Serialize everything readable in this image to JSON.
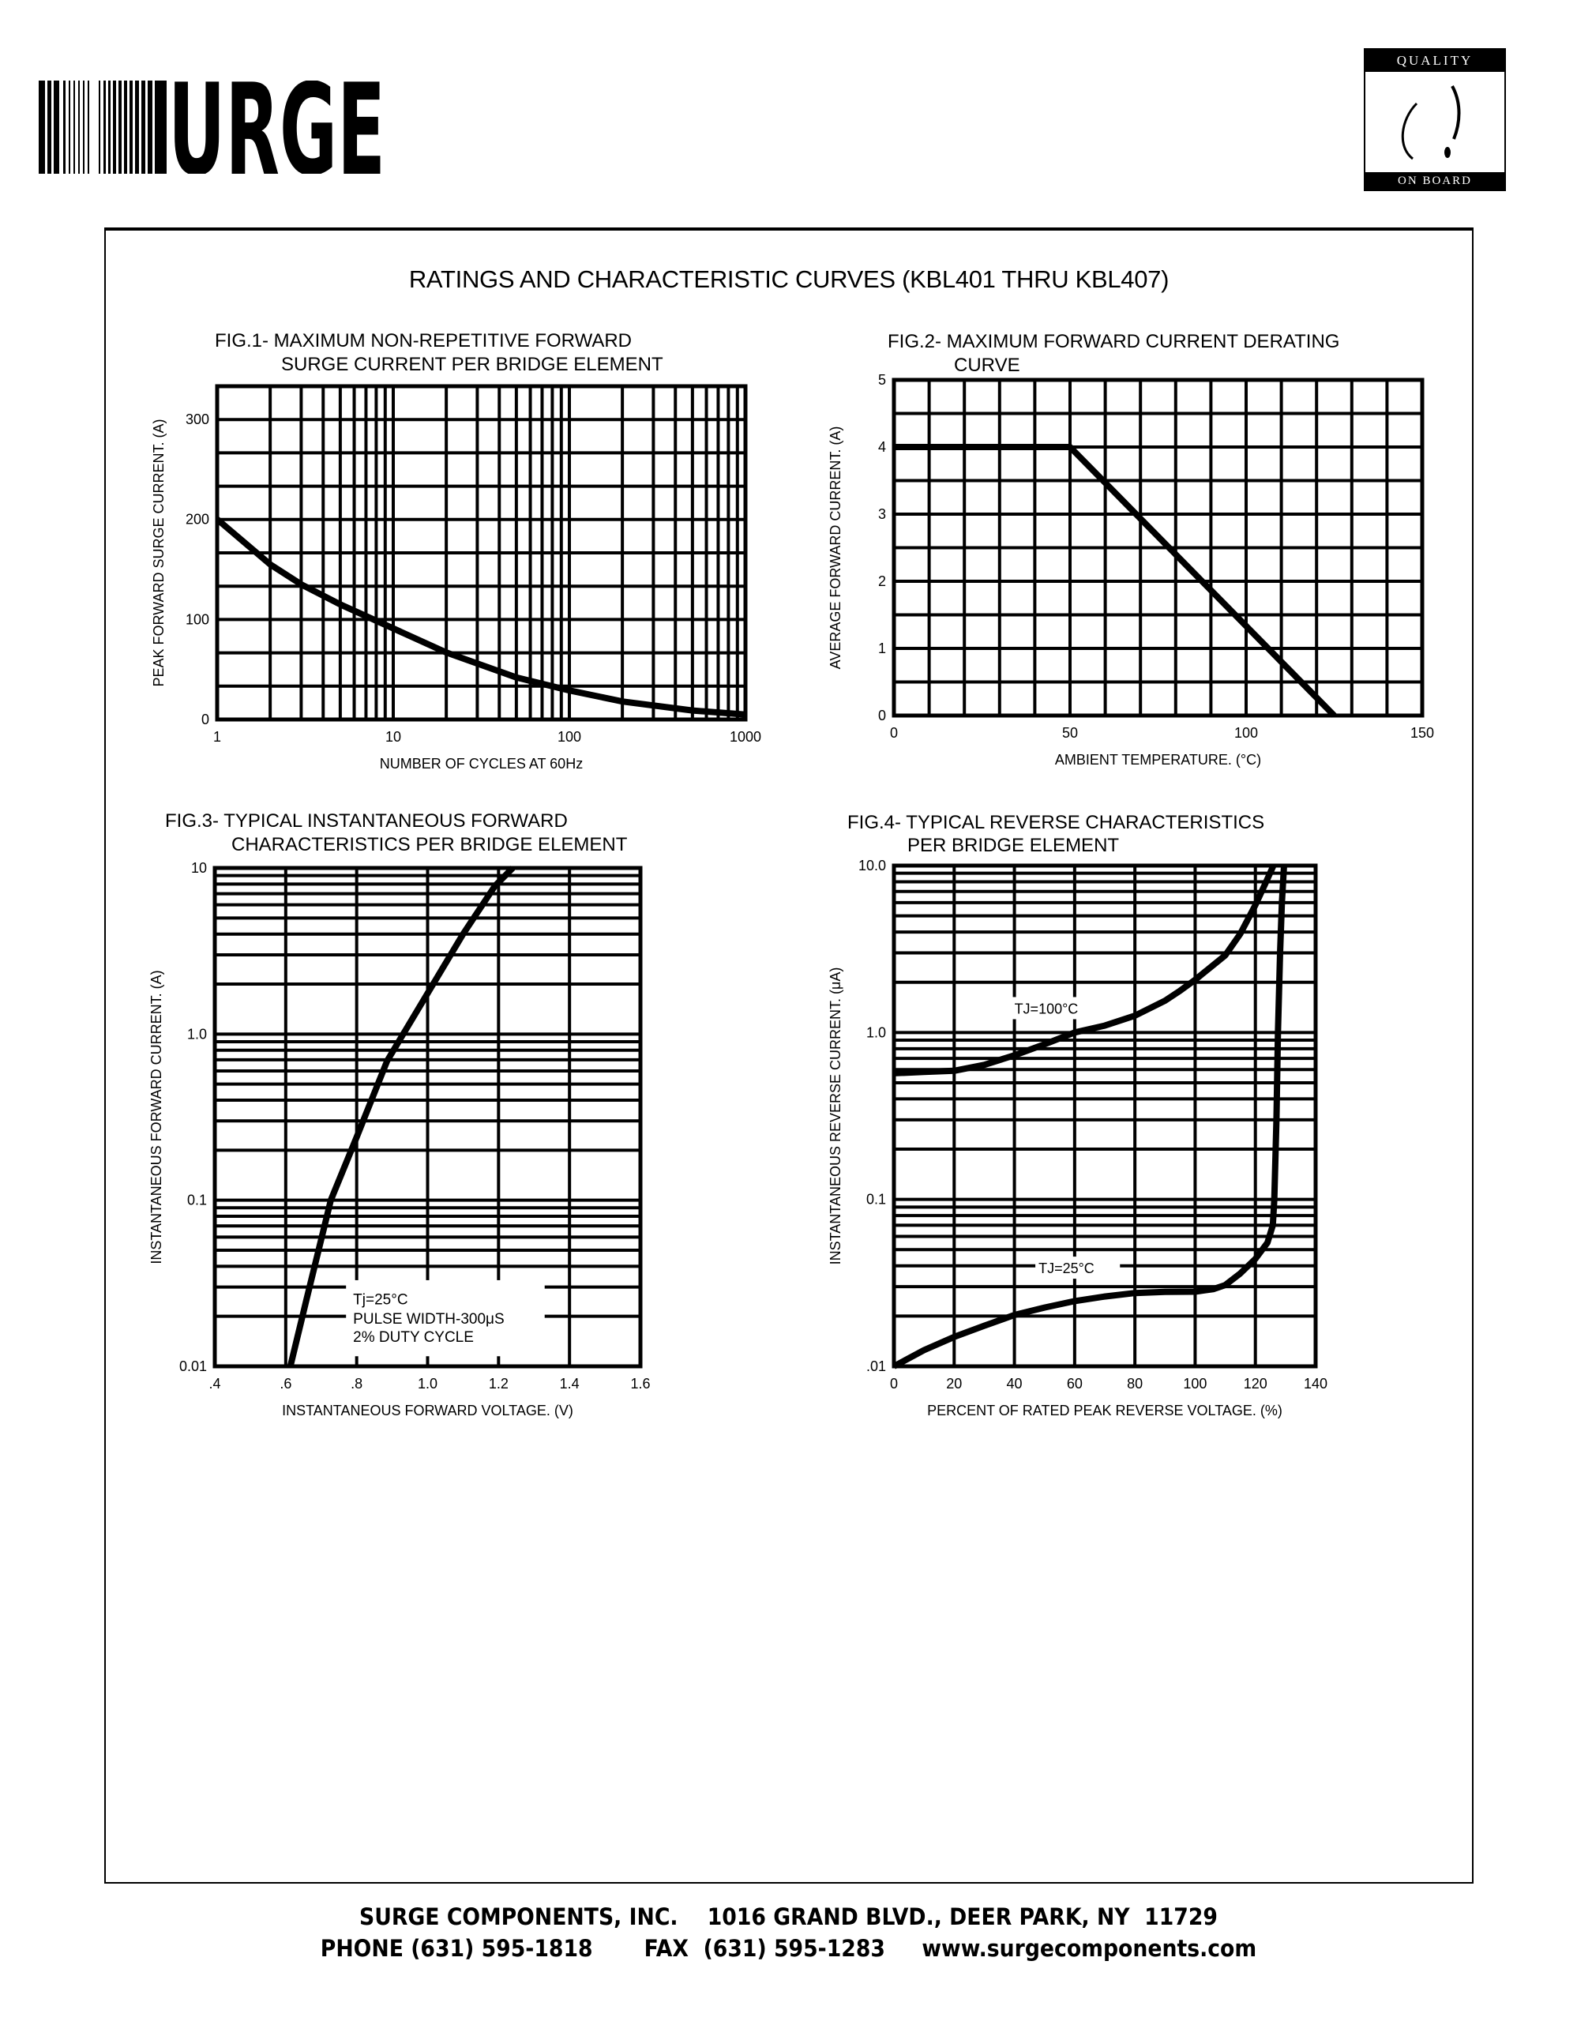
{
  "header": {
    "logo_text": "SURGE",
    "badge": {
      "top": "QUALITY",
      "bottom": "ON BOARD"
    }
  },
  "main": {
    "title": "RATINGS AND CHARACTERISTIC CURVES (KBL401 THRU KBL407)"
  },
  "chart_data": [
    {
      "type": "line",
      "title_lines": [
        "FIG.1- MAXIMUM NON-REPETITIVE FORWARD",
        "SURGE CURRENT PER BRIDGE ELEMENT"
      ],
      "xlabel": "NUMBER OF CYCLES AT 60Hz",
      "ylabel": "PEAK FORWARD SURGE CURRENT. (A)",
      "xscale": "log",
      "yscale": "linear",
      "xlim": [
        1,
        1000
      ],
      "ylim": [
        0,
        333
      ],
      "grid": true,
      "x_ticks": [
        {
          "v": 1,
          "label": "1"
        },
        {
          "v": 10,
          "label": "10"
        },
        {
          "v": 100,
          "label": "100"
        },
        {
          "v": 1000,
          "label": "1000"
        }
      ],
      "y_ticks": [
        {
          "v": 0,
          "label": "0"
        },
        {
          "v": 100,
          "label": "100"
        },
        {
          "v": 200,
          "label": "200"
        },
        {
          "v": 300,
          "label": "300"
        }
      ],
      "series": [
        {
          "points": [
            [
              1,
              200
            ],
            [
              2,
              155
            ],
            [
              3,
              135
            ],
            [
              5,
              115
            ],
            [
              10,
              91
            ],
            [
              20,
              67
            ],
            [
              50,
              42
            ],
            [
              100,
              29
            ],
            [
              200,
              18
            ],
            [
              500,
              9
            ],
            [
              1000,
              5
            ]
          ]
        }
      ]
    },
    {
      "type": "line",
      "title_lines": [
        "FIG.2- MAXIMUM FORWARD CURRENT DERATING",
        "CURVE"
      ],
      "xlabel": "AMBIENT TEMPERATURE. (°C)",
      "ylabel": "AVERAGE FORWARD CURRENT. (A)",
      "xscale": "linear",
      "yscale": "linear",
      "xlim": [
        0,
        150
      ],
      "ylim": [
        0,
        5
      ],
      "grid": true,
      "x_ticks": [
        {
          "v": 0,
          "label": "0"
        },
        {
          "v": 50,
          "label": "50"
        },
        {
          "v": 100,
          "label": "100"
        },
        {
          "v": 150,
          "label": "150"
        }
      ],
      "y_ticks": [
        {
          "v": 0,
          "label": "0"
        },
        {
          "v": 1,
          "label": "1"
        },
        {
          "v": 2,
          "label": "2"
        },
        {
          "v": 3,
          "label": "3"
        },
        {
          "v": 4,
          "label": "4"
        },
        {
          "v": 5,
          "label": "5"
        }
      ],
      "series": [
        {
          "points": [
            [
              0,
              4
            ],
            [
              50,
              4
            ],
            [
              125,
              0
            ]
          ]
        }
      ]
    },
    {
      "type": "line",
      "title_lines": [
        "FIG.3- TYPICAL INSTANTANEOUS FORWARD",
        "CHARACTERISTICS PER BRIDGE ELEMENT"
      ],
      "xlabel": "INSTANTANEOUS FORWARD VOLTAGE. (V)",
      "ylabel": "INSTANTANEOUS FORWARD CURRENT. (A)",
      "xscale": "linear",
      "yscale": "log",
      "xlim": [
        0.4,
        1.6
      ],
      "ylim": [
        0.01,
        10
      ],
      "grid": true,
      "x_ticks": [
        {
          "v": 0.4,
          "label": ".4"
        },
        {
          "v": 0.6,
          "label": ".6"
        },
        {
          "v": 0.8,
          "label": ".8"
        },
        {
          "v": 1.0,
          "label": "1.0"
        },
        {
          "v": 1.2,
          "label": "1.2"
        },
        {
          "v": 1.4,
          "label": "1.4"
        },
        {
          "v": 1.6,
          "label": "1.6"
        }
      ],
      "y_ticks": [
        {
          "v": 0.01,
          "label": "0.01"
        },
        {
          "v": 0.1,
          "label": "0.1"
        },
        {
          "v": 1,
          "label": "1.0"
        },
        {
          "v": 10,
          "label": "10"
        }
      ],
      "annotation_lines": [
        "Tj=25°C",
        "PULSE WIDTH-300μS",
        "2% DUTY CYCLE"
      ],
      "series": [
        {
          "points": [
            [
              0.613,
              0.01
            ],
            [
              0.658,
              0.025
            ],
            [
              0.727,
              0.1
            ],
            [
              0.8,
              0.24
            ],
            [
              0.886,
              0.69
            ],
            [
              1.0,
              1.76
            ],
            [
              1.1,
              4.0
            ],
            [
              1.19,
              7.8
            ],
            [
              1.24,
              10
            ]
          ]
        }
      ]
    },
    {
      "type": "line",
      "title_lines": [
        "FIG.4- TYPICAL REVERSE CHARACTERISTICS",
        "PER BRIDGE ELEMENT"
      ],
      "xlabel": "PERCENT OF RATED PEAK REVERSE VOLTAGE. (%)",
      "ylabel": "INSTANTANEOUS REVERSE CURRENT. (μA)",
      "xscale": "linear",
      "yscale": "log",
      "xlim": [
        0,
        140
      ],
      "ylim": [
        0.01,
        10
      ],
      "grid": true,
      "x_ticks": [
        {
          "v": 0,
          "label": "0"
        },
        {
          "v": 20,
          "label": "20"
        },
        {
          "v": 40,
          "label": "40"
        },
        {
          "v": 60,
          "label": "60"
        },
        {
          "v": 80,
          "label": "80"
        },
        {
          "v": 100,
          "label": "100"
        },
        {
          "v": 120,
          "label": "120"
        },
        {
          "v": 140,
          "label": "140"
        }
      ],
      "y_ticks": [
        {
          "v": 0.01,
          "label": ".01"
        },
        {
          "v": 0.1,
          "label": "0.1"
        },
        {
          "v": 1,
          "label": "1.0"
        },
        {
          "v": 10,
          "label": "10.0"
        }
      ],
      "series": [
        {
          "name": "TJ=100°C",
          "points": [
            [
              0,
              0.57
            ],
            [
              10,
              0.58
            ],
            [
              20,
              0.59
            ],
            [
              30,
              0.64
            ],
            [
              40,
              0.73
            ],
            [
              50,
              0.85
            ],
            [
              60,
              1.0
            ],
            [
              70,
              1.1
            ],
            [
              80,
              1.26
            ],
            [
              90,
              1.55
            ],
            [
              95,
              1.78
            ],
            [
              100,
              2.07
            ],
            [
              105,
              2.45
            ],
            [
              110,
              2.9
            ],
            [
              115,
              3.9
            ],
            [
              120,
              5.8
            ],
            [
              123,
              7.6
            ],
            [
              126,
              10
            ]
          ]
        },
        {
          "name": "TJ=25°C",
          "points": [
            [
              0,
              0.01
            ],
            [
              10,
              0.0125
            ],
            [
              20,
              0.015
            ],
            [
              30,
              0.0175
            ],
            [
              40,
              0.0203
            ],
            [
              50,
              0.0225
            ],
            [
              60,
              0.0246
            ],
            [
              70,
              0.0262
            ],
            [
              80,
              0.0275
            ],
            [
              90,
              0.0279
            ],
            [
              100,
              0.028
            ],
            [
              106,
              0.029
            ],
            [
              110,
              0.0307
            ],
            [
              115,
              0.036
            ],
            [
              120,
              0.044
            ],
            [
              124,
              0.055
            ],
            [
              125.8,
              0.07
            ],
            [
              126.3,
              0.1
            ],
            [
              127,
              0.3
            ],
            [
              127.5,
              1
            ],
            [
              128.2,
              3
            ],
            [
              128.8,
              6
            ],
            [
              129.5,
              10
            ]
          ]
        }
      ]
    }
  ],
  "footer": {
    "line1": "SURGE COMPONENTS, INC.    1016 GRAND BLVD., DEER PARK, NY  11729",
    "line2": "PHONE (631) 595-1818       FAX  (631) 595-1283     www.surgecomponents.com"
  }
}
